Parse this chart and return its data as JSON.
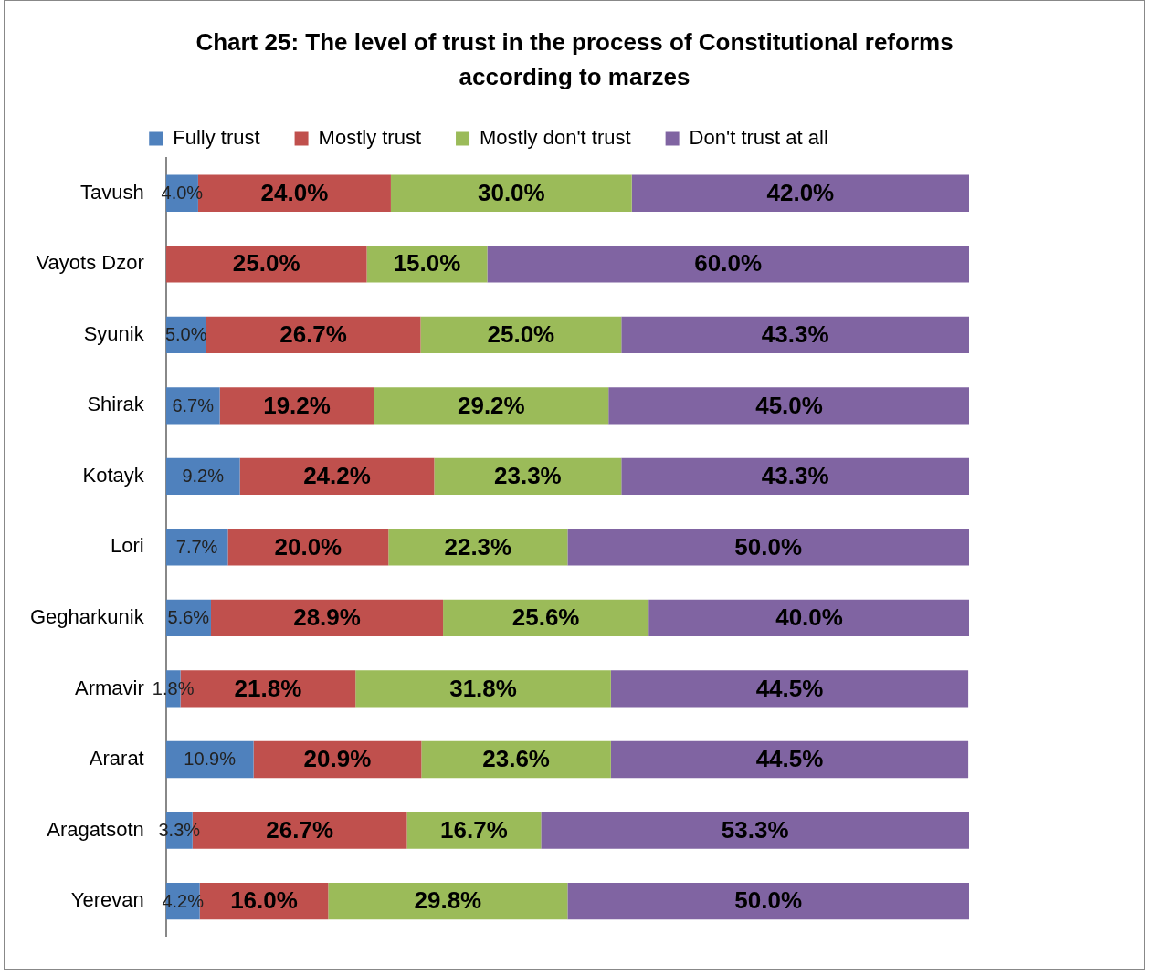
{
  "chart_data": {
    "type": "bar",
    "orientation": "horizontal",
    "stacked": true,
    "title": "Chart 25: The level of trust in the process of Constitutional reforms according to marzes",
    "categories": [
      "Tavush",
      "Vayots Dzor",
      "Syunik",
      "Shirak",
      "Kotayk",
      "Lori",
      "Gegharkunik",
      "Armavir",
      "Ararat",
      "Aragatsotn",
      "Yerevan"
    ],
    "xlim": [
      0,
      100
    ],
    "tick_labels": "y",
    "grid": false,
    "legend": "top",
    "series": [
      {
        "name": "Fully trust",
        "color": "#4f81bd",
        "values": [
          4.0,
          0,
          5.0,
          6.7,
          9.2,
          7.7,
          5.6,
          1.8,
          10.9,
          3.3,
          4.2
        ],
        "value_labels": [
          "4.0%",
          null,
          "5.0%",
          "6.7%",
          "9.2%",
          "7.7%",
          "5.6%",
          "1.8%",
          "10.9%",
          "3.3%",
          "4.2%"
        ]
      },
      {
        "name": "Mostly trust",
        "color": "#c0504d",
        "values": [
          24.0,
          25.0,
          26.7,
          19.2,
          24.2,
          20.0,
          28.9,
          21.8,
          20.9,
          26.7,
          16.0
        ],
        "value_labels": [
          "24.0%",
          "25.0%",
          "26.7%",
          "19.2%",
          "24.2%",
          "20.0%",
          "28.9%",
          "21.8%",
          "20.9%",
          "26.7%",
          "16.0%"
        ]
      },
      {
        "name": "Mostly don't trust",
        "color": "#9bbb59",
        "values": [
          30.0,
          15.0,
          25.0,
          29.2,
          23.3,
          22.3,
          25.6,
          31.8,
          23.6,
          16.7,
          29.8
        ],
        "value_labels": [
          "30.0%",
          "15.0%",
          "25.0%",
          "29.2%",
          "23.3%",
          "22.3%",
          "25.6%",
          "31.8%",
          "23.6%",
          "16.7%",
          "29.8%"
        ]
      },
      {
        "name": "Don't trust at all",
        "color": "#8064a2",
        "values": [
          42.0,
          60.0,
          43.3,
          45.0,
          43.3,
          50.0,
          40.0,
          44.5,
          44.5,
          53.3,
          50.0
        ],
        "value_labels": [
          "42.0%",
          "60.0%",
          "43.3%",
          "45.0%",
          "43.3%",
          "50.0%",
          "40.0%",
          "44.5%",
          "44.5%",
          "53.3%",
          "50.0%"
        ]
      }
    ]
  }
}
